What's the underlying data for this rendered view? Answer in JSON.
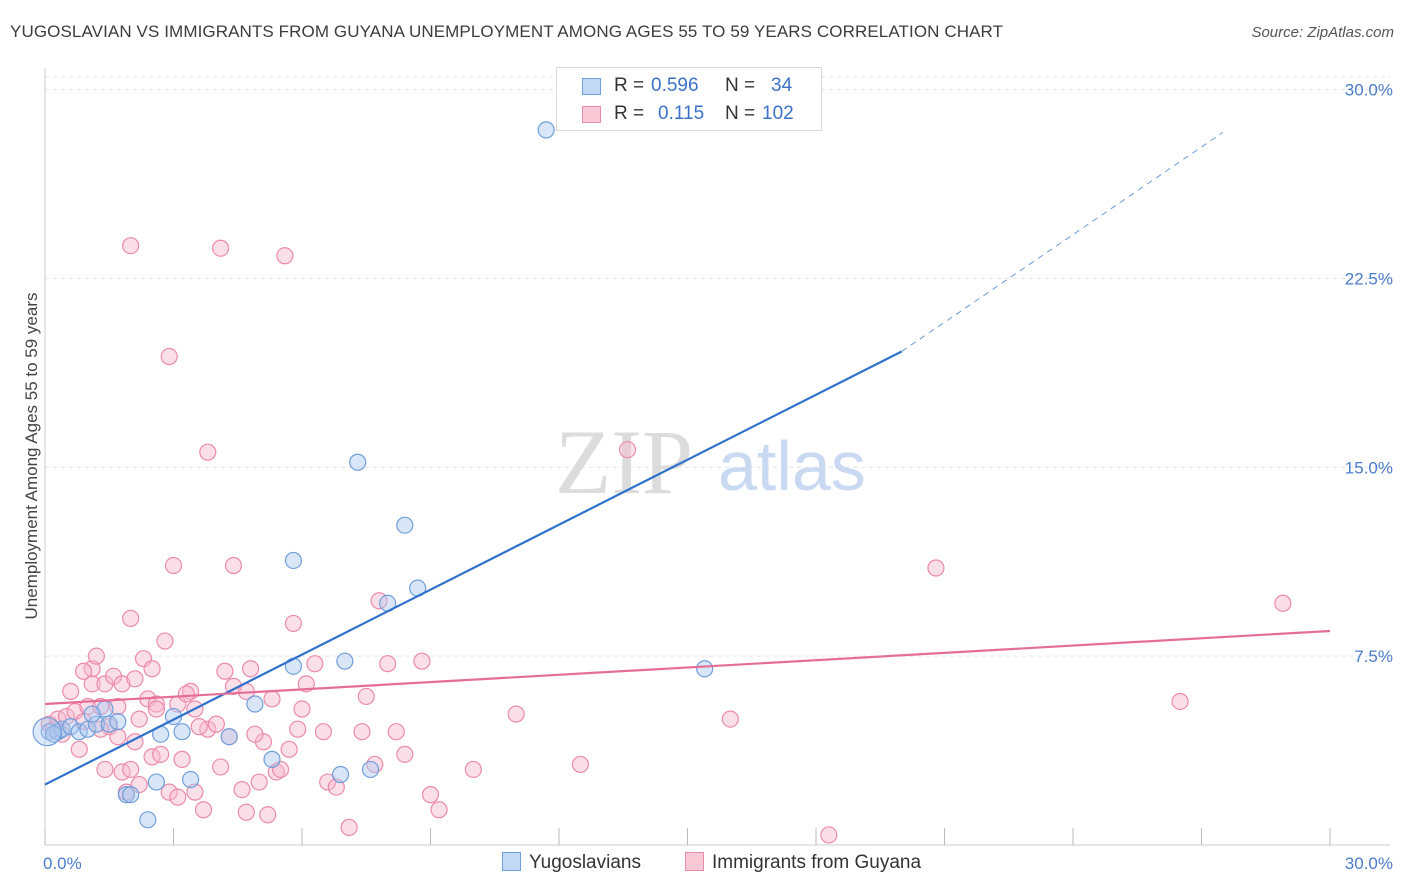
{
  "title": "YUGOSLAVIAN VS IMMIGRANTS FROM GUYANA UNEMPLOYMENT AMONG AGES 55 TO 59 YEARS CORRELATION CHART",
  "source": "Source: ZipAtlas.com",
  "watermark": {
    "zip": "ZIP",
    "atlas": "atlas"
  },
  "legend": {
    "rows": [
      {
        "r_label": "R =",
        "r_value": "0.596",
        "n_label": "N =",
        "n_value": "34"
      },
      {
        "r_label": "R =",
        "r_value": "0.115",
        "n_label": "N =",
        "n_value": "102"
      }
    ]
  },
  "bottom_legend": [
    "Yugoslavians",
    "Immigrants from Guyana"
  ],
  "colors": {
    "blue_fill": "#aac8f0",
    "blue_stroke": "#6f9fdc",
    "blue_line": "#2f72cc",
    "pink_fill": "#f7b8cc",
    "pink_stroke": "#ec8aaa",
    "pink_line": "#e56e98",
    "tick_text": "#4a7cc9",
    "grid": "#e4e4e4"
  },
  "chart_data": {
    "type": "scatter",
    "title": "YUGOSLAVIAN VS IMMIGRANTS FROM GUYANA UNEMPLOYMENT AMONG AGES 55 TO 59 YEARS CORRELATION CHART",
    "xlabel": "",
    "ylabel": "Unemployment Among Ages 55 to 59 years",
    "xlim": [
      0,
      30
    ],
    "ylim": [
      0,
      30.5
    ],
    "x_tick_labels": [
      "0.0%",
      "30.0%"
    ],
    "y_ticks": [
      7.5,
      15.0,
      22.5,
      30.0
    ],
    "y_tick_labels": [
      "7.5%",
      "15.0%",
      "22.5%",
      "30.0%"
    ],
    "grid": true,
    "series": [
      {
        "name": "Yugoslavians",
        "R": 0.596,
        "N": 34,
        "trend": {
          "x": [
            0,
            20.0
          ],
          "y": [
            2.4,
            19.6
          ],
          "dash_to": [
            27.5,
            28.3
          ]
        },
        "points": [
          [
            0.1,
            4.5
          ],
          [
            0.3,
            4.5
          ],
          [
            0.4,
            4.6
          ],
          [
            0.6,
            4.7
          ],
          [
            0.8,
            4.5
          ],
          [
            1.0,
            4.6
          ],
          [
            1.2,
            4.8
          ],
          [
            1.4,
            5.4
          ],
          [
            1.5,
            4.8
          ],
          [
            1.7,
            4.9
          ],
          [
            1.9,
            2.0
          ],
          [
            2.0,
            2.0
          ],
          [
            2.4,
            1.0
          ],
          [
            2.7,
            4.4
          ],
          [
            3.0,
            5.1
          ],
          [
            3.2,
            4.5
          ],
          [
            3.4,
            2.6
          ],
          [
            4.9,
            5.6
          ],
          [
            5.3,
            3.4
          ],
          [
            5.8,
            7.1
          ],
          [
            5.8,
            11.3
          ],
          [
            7.0,
            7.3
          ],
          [
            7.3,
            15.2
          ],
          [
            7.6,
            3.0
          ],
          [
            8.0,
            9.6
          ],
          [
            8.4,
            12.7
          ],
          [
            8.7,
            10.2
          ],
          [
            11.7,
            28.4
          ],
          [
            15.4,
            7.0
          ],
          [
            0.2,
            4.4
          ],
          [
            1.1,
            5.2
          ],
          [
            2.6,
            2.5
          ],
          [
            4.3,
            4.3
          ],
          [
            6.9,
            2.8
          ]
        ]
      },
      {
        "name": "Immigrants from Guyana",
        "R": 0.115,
        "N": 102,
        "trend": {
          "x": [
            0,
            30
          ],
          "y": [
            5.6,
            8.5
          ]
        },
        "points": [
          [
            0.1,
            4.8
          ],
          [
            0.2,
            4.6
          ],
          [
            0.3,
            5.0
          ],
          [
            0.4,
            4.4
          ],
          [
            0.5,
            5.1
          ],
          [
            0.6,
            6.1
          ],
          [
            0.7,
            5.3
          ],
          [
            0.8,
            3.8
          ],
          [
            0.9,
            4.9
          ],
          [
            1.0,
            5.5
          ],
          [
            1.1,
            7.0
          ],
          [
            1.1,
            6.4
          ],
          [
            1.2,
            7.5
          ],
          [
            1.3,
            5.5
          ],
          [
            1.4,
            6.4
          ],
          [
            1.4,
            3.0
          ],
          [
            1.5,
            4.7
          ],
          [
            1.6,
            6.7
          ],
          [
            1.7,
            4.3
          ],
          [
            1.8,
            6.4
          ],
          [
            1.8,
            2.9
          ],
          [
            1.9,
            2.1
          ],
          [
            2.0,
            3.0
          ],
          [
            2.0,
            9.0
          ],
          [
            2.0,
            23.8
          ],
          [
            2.1,
            4.1
          ],
          [
            2.2,
            5.0
          ],
          [
            2.2,
            2.4
          ],
          [
            2.3,
            7.4
          ],
          [
            2.4,
            5.8
          ],
          [
            2.5,
            7.0
          ],
          [
            2.5,
            3.5
          ],
          [
            2.6,
            5.6
          ],
          [
            2.7,
            3.6
          ],
          [
            2.8,
            8.1
          ],
          [
            2.9,
            19.4
          ],
          [
            2.9,
            2.1
          ],
          [
            3.0,
            11.1
          ],
          [
            3.1,
            1.9
          ],
          [
            3.1,
            5.6
          ],
          [
            3.2,
            3.4
          ],
          [
            3.4,
            6.1
          ],
          [
            3.5,
            5.4
          ],
          [
            3.5,
            2.1
          ],
          [
            3.7,
            1.4
          ],
          [
            3.8,
            15.6
          ],
          [
            3.8,
            4.6
          ],
          [
            4.0,
            4.8
          ],
          [
            4.1,
            23.7
          ],
          [
            4.1,
            3.1
          ],
          [
            4.2,
            6.9
          ],
          [
            4.3,
            4.3
          ],
          [
            4.4,
            6.3
          ],
          [
            4.4,
            11.1
          ],
          [
            4.6,
            2.2
          ],
          [
            4.7,
            6.1
          ],
          [
            4.7,
            1.3
          ],
          [
            4.8,
            7.0
          ],
          [
            5.0,
            2.5
          ],
          [
            5.1,
            4.1
          ],
          [
            5.2,
            1.2
          ],
          [
            5.3,
            5.8
          ],
          [
            5.4,
            2.9
          ],
          [
            5.5,
            3.0
          ],
          [
            5.6,
            23.4
          ],
          [
            5.8,
            8.8
          ],
          [
            5.9,
            4.6
          ],
          [
            6.1,
            6.4
          ],
          [
            6.3,
            7.2
          ],
          [
            6.5,
            4.5
          ],
          [
            6.6,
            2.5
          ],
          [
            6.8,
            2.3
          ],
          [
            7.1,
            0.7
          ],
          [
            7.4,
            4.5
          ],
          [
            7.7,
            3.2
          ],
          [
            7.8,
            9.7
          ],
          [
            8.0,
            7.2
          ],
          [
            8.2,
            4.5
          ],
          [
            8.4,
            3.6
          ],
          [
            8.8,
            7.3
          ],
          [
            9.0,
            2.0
          ],
          [
            9.2,
            1.4
          ],
          [
            10.0,
            3.0
          ],
          [
            11.0,
            5.2
          ],
          [
            12.5,
            3.2
          ],
          [
            13.6,
            15.7
          ],
          [
            16.0,
            5.0
          ],
          [
            18.3,
            0.4
          ],
          [
            20.8,
            11.0
          ],
          [
            26.5,
            5.7
          ],
          [
            28.9,
            9.6
          ],
          [
            1.3,
            4.6
          ],
          [
            2.6,
            5.4
          ],
          [
            3.3,
            6.0
          ],
          [
            4.9,
            4.4
          ],
          [
            6.0,
            5.4
          ],
          [
            0.9,
            6.9
          ],
          [
            1.7,
            5.5
          ],
          [
            2.1,
            6.6
          ],
          [
            3.6,
            4.7
          ],
          [
            5.7,
            3.8
          ],
          [
            7.5,
            5.9
          ]
        ]
      }
    ]
  }
}
